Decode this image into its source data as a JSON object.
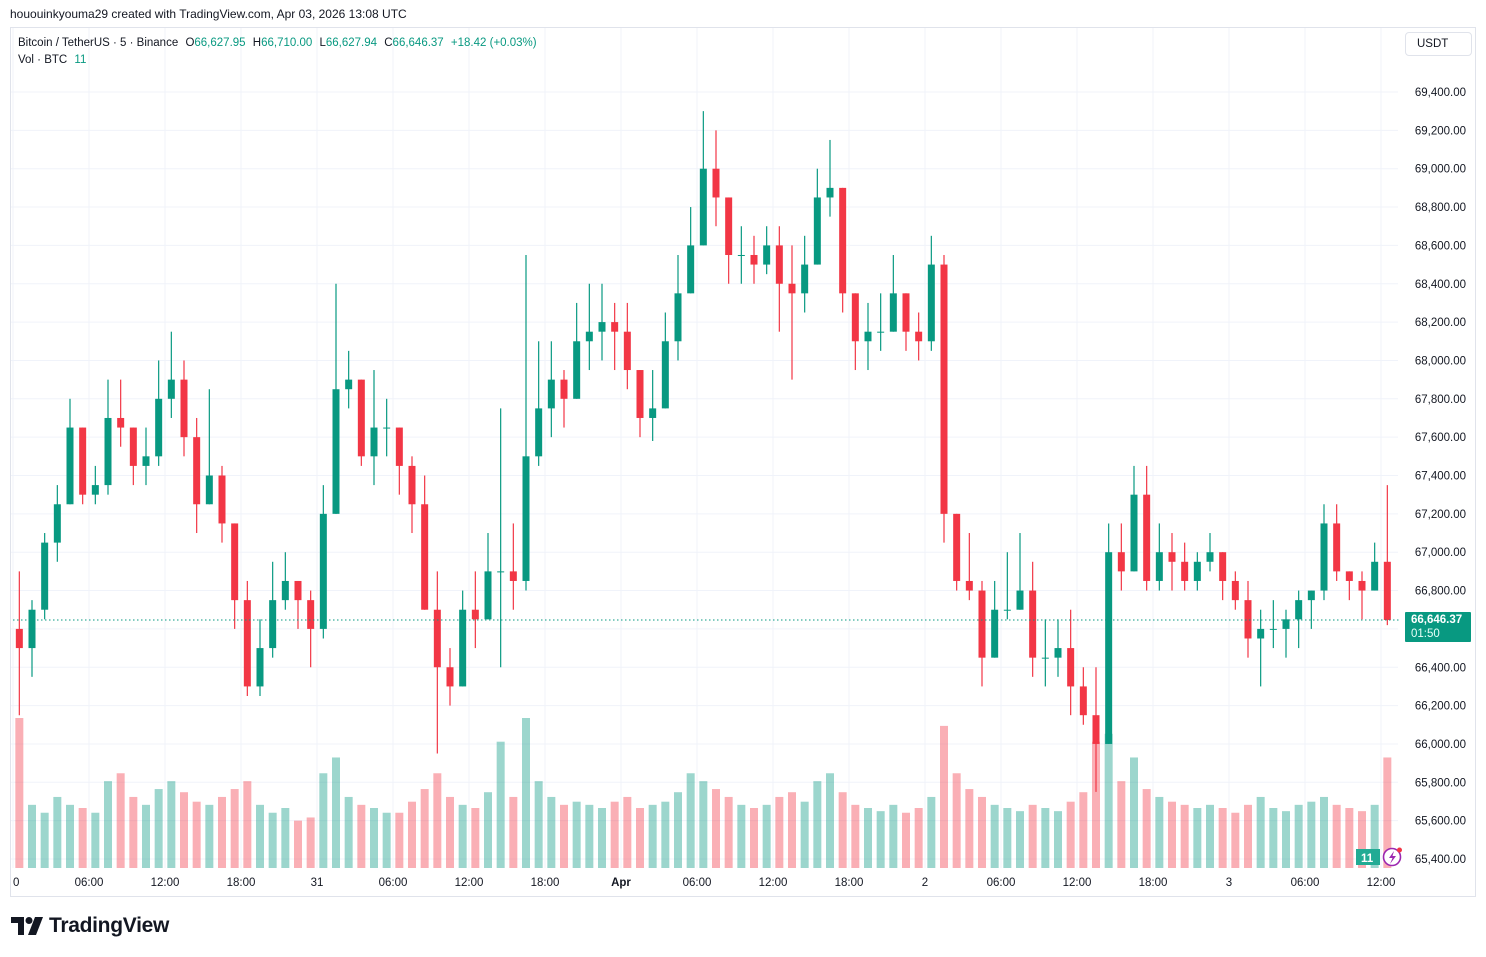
{
  "credit": "hououinkyouma29 created with TradingView.com, Apr 03, 2026 13:08 UTC",
  "legend": {
    "symbol": "Bitcoin / TetherUS · 5 · Binance",
    "open_label": "O",
    "open": "66,627.95",
    "high_label": "H",
    "high": "66,710.00",
    "low_label": "L",
    "low": "66,627.94",
    "close_label": "C",
    "close": "66,646.37",
    "change": "+18.42 (+0.03%)",
    "vol_label": "Vol · BTC",
    "vol_value": "11"
  },
  "currency_button": "USDT",
  "last_price": {
    "value": "66,646.37",
    "countdown": "01:50",
    "price": 66646.37
  },
  "volume_badge": "11",
  "brand": "TradingView",
  "colors": {
    "up": "#089981",
    "down": "#f23645",
    "grid": "#f0f3fa",
    "accent": "#089981"
  },
  "chart_data": {
    "type": "candlestick",
    "note_values": "hourly aggregation of 5-minute candles, [open, high, low, close]",
    "ylim": [
      65400,
      69400
    ],
    "price_ticks": [
      "69,400.00",
      "69,200.00",
      "69,000.00",
      "68,800.00",
      "68,600.00",
      "68,400.00",
      "68,200.00",
      "68,000.00",
      "67,800.00",
      "67,600.00",
      "67,400.00",
      "67,200.00",
      "67,000.00",
      "66,800.00",
      "66,400.00",
      "66,200.00",
      "66,000.00",
      "65,800.00",
      "65,600.00",
      "65,400.00"
    ],
    "time_ticks": [
      "0",
      "06:00",
      "12:00",
      "18:00",
      "31",
      "06:00",
      "12:00",
      "18:00",
      "Apr",
      "06:00",
      "12:00",
      "18:00",
      "2",
      "06:00",
      "12:00",
      "18:00",
      "3",
      "06:00",
      "12:00"
    ],
    "grid": true,
    "candles": [
      [
        66600,
        66900,
        66150,
        66500
      ],
      [
        66500,
        66750,
        66350,
        66700
      ],
      [
        66700,
        67100,
        66650,
        67050
      ],
      [
        67050,
        67350,
        66950,
        67250
      ],
      [
        67250,
        67800,
        67250,
        67650
      ],
      [
        67650,
        67650,
        67250,
        67300
      ],
      [
        67300,
        67450,
        67250,
        67350
      ],
      [
        67350,
        67900,
        67300,
        67700
      ],
      [
        67700,
        67900,
        67550,
        67650
      ],
      [
        67650,
        67650,
        67350,
        67450
      ],
      [
        67450,
        67650,
        67350,
        67500
      ],
      [
        67500,
        68000,
        67450,
        67800
      ],
      [
        67800,
        68150,
        67700,
        67900
      ],
      [
        67900,
        68000,
        67500,
        67600
      ],
      [
        67600,
        67700,
        67100,
        67250
      ],
      [
        67250,
        67850,
        67250,
        67400
      ],
      [
        67400,
        67450,
        67050,
        67150
      ],
      [
        67150,
        67150,
        66600,
        66750
      ],
      [
        66750,
        66850,
        66250,
        66300
      ],
      [
        66300,
        66650,
        66250,
        66500
      ],
      [
        66500,
        66950,
        66450,
        66750
      ],
      [
        66750,
        67000,
        66700,
        66850
      ],
      [
        66850,
        66850,
        66600,
        66750
      ],
      [
        66750,
        66800,
        66400,
        66600
      ],
      [
        66600,
        67350,
        66550,
        67200
      ],
      [
        67200,
        68400,
        67200,
        67850
      ],
      [
        67850,
        68050,
        67750,
        67900
      ],
      [
        67900,
        67900,
        67450,
        67500
      ],
      [
        67500,
        67950,
        67350,
        67650
      ],
      [
        67650,
        67800,
        67500,
        67650
      ],
      [
        67650,
        67650,
        67300,
        67450
      ],
      [
        67450,
        67500,
        67100,
        67250
      ],
      [
        67250,
        67400,
        66700,
        66700
      ],
      [
        66700,
        66900,
        65950,
        66400
      ],
      [
        66400,
        66500,
        66200,
        66300
      ],
      [
        66300,
        66800,
        66300,
        66700
      ],
      [
        66700,
        66900,
        66500,
        66650
      ],
      [
        66650,
        67100,
        66650,
        66900
      ],
      [
        66900,
        67750,
        66400,
        66900
      ],
      [
        66900,
        67150,
        66700,
        66850
      ],
      [
        66850,
        68550,
        66800,
        67500
      ],
      [
        67500,
        68100,
        67450,
        67750
      ],
      [
        67750,
        68100,
        67600,
        67900
      ],
      [
        67900,
        67950,
        67650,
        67800
      ],
      [
        67800,
        68300,
        67800,
        68100
      ],
      [
        68100,
        68400,
        67950,
        68150
      ],
      [
        68150,
        68400,
        68000,
        68200
      ],
      [
        68200,
        68300,
        67950,
        68150
      ],
      [
        68150,
        68300,
        67850,
        67950
      ],
      [
        67950,
        67950,
        67600,
        67700
      ],
      [
        67700,
        67950,
        67580,
        67750
      ],
      [
        67750,
        68250,
        67750,
        68100
      ],
      [
        68100,
        68550,
        68000,
        68350
      ],
      [
        68350,
        68800,
        68350,
        68600
      ],
      [
        68600,
        69300,
        68600,
        69000
      ],
      [
        69000,
        69200,
        68700,
        68850
      ],
      [
        68850,
        68850,
        68400,
        68550
      ],
      [
        68550,
        68700,
        68400,
        68550
      ],
      [
        68550,
        68650,
        68400,
        68500
      ],
      [
        68500,
        68700,
        68450,
        68600
      ],
      [
        68600,
        68700,
        68150,
        68400
      ],
      [
        68400,
        68600,
        67900,
        68350
      ],
      [
        68350,
        68650,
        68250,
        68500
      ],
      [
        68500,
        69000,
        68500,
        68850
      ],
      [
        68850,
        69150,
        68750,
        68900
      ],
      [
        68900,
        68900,
        68250,
        68350
      ],
      [
        68350,
        68350,
        67950,
        68100
      ],
      [
        68100,
        68300,
        67950,
        68150
      ],
      [
        68150,
        68350,
        68050,
        68150
      ],
      [
        68150,
        68550,
        68150,
        68350
      ],
      [
        68350,
        68350,
        68050,
        68150
      ],
      [
        68150,
        68250,
        68000,
        68100
      ],
      [
        68100,
        68650,
        68050,
        68500
      ],
      [
        68500,
        68550,
        67050,
        67200
      ],
      [
        67200,
        67200,
        66800,
        66850
      ],
      [
        66850,
        67100,
        66750,
        66800
      ],
      [
        66800,
        66850,
        66300,
        66450
      ],
      [
        66450,
        66850,
        66450,
        66700
      ],
      [
        66700,
        67000,
        66650,
        66700
      ],
      [
        66700,
        67100,
        66700,
        66800
      ],
      [
        66800,
        66950,
        66350,
        66450
      ],
      [
        66450,
        66650,
        66300,
        66450
      ],
      [
        66450,
        66650,
        66350,
        66500
      ],
      [
        66500,
        66700,
        66150,
        66300
      ],
      [
        66300,
        66400,
        66100,
        66150
      ],
      [
        66150,
        66400,
        65750,
        66000
      ],
      [
        66000,
        67150,
        66000,
        67000
      ],
      [
        67000,
        67150,
        66800,
        66900
      ],
      [
        66900,
        67450,
        66900,
        67300
      ],
      [
        67300,
        67450,
        66800,
        66850
      ],
      [
        66850,
        67150,
        66800,
        67000
      ],
      [
        67000,
        67100,
        66800,
        66950
      ],
      [
        66950,
        67050,
        66800,
        66850
      ],
      [
        66850,
        67000,
        66800,
        66950
      ],
      [
        66950,
        67100,
        66900,
        67000
      ],
      [
        67000,
        67000,
        66750,
        66850
      ],
      [
        66850,
        66900,
        66700,
        66750
      ],
      [
        66750,
        66850,
        66450,
        66550
      ],
      [
        66550,
        66700,
        66300,
        66600
      ],
      [
        66600,
        66750,
        66500,
        66600
      ],
      [
        66600,
        66700,
        66450,
        66650
      ],
      [
        66650,
        66800,
        66500,
        66750
      ],
      [
        66750,
        66800,
        66600,
        66800
      ],
      [
        66800,
        67250,
        66750,
        67150
      ],
      [
        67150,
        67250,
        66850,
        66900
      ],
      [
        66900,
        66900,
        66750,
        66850
      ],
      [
        66850,
        66900,
        66650,
        66800
      ],
      [
        66800,
        67050,
        66800,
        66950
      ],
      [
        66950,
        67350,
        66620,
        66646.37
      ]
    ],
    "volume": [
      95,
      40,
      35,
      45,
      40,
      38,
      35,
      55,
      60,
      45,
      40,
      50,
      55,
      48,
      42,
      40,
      45,
      50,
      55,
      40,
      35,
      38,
      30,
      32,
      60,
      70,
      45,
      40,
      38,
      35,
      35,
      42,
      50,
      60,
      45,
      40,
      38,
      48,
      80,
      45,
      95,
      55,
      45,
      40,
      42,
      40,
      38,
      42,
      45,
      38,
      40,
      42,
      48,
      60,
      55,
      50,
      45,
      40,
      38,
      40,
      45,
      48,
      42,
      55,
      60,
      48,
      40,
      38,
      36,
      40,
      35,
      38,
      45,
      90,
      60,
      50,
      45,
      40,
      38,
      36,
      40,
      38,
      36,
      42,
      48,
      80,
      85,
      55,
      70,
      50,
      45,
      42,
      40,
      38,
      40,
      38,
      35,
      40,
      45,
      38,
      36,
      40,
      42,
      45,
      40,
      38,
      36,
      40,
      70
    ]
  }
}
